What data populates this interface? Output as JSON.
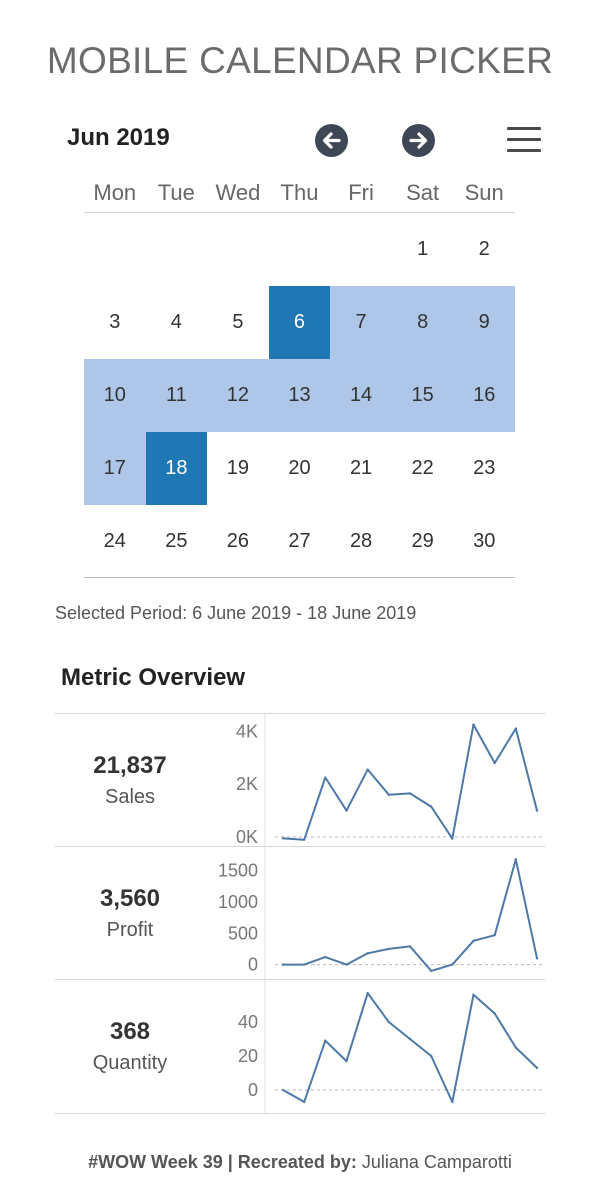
{
  "title": "MOBILE CALENDAR PICKER",
  "calendar": {
    "month_label": "Jun 2019",
    "prev_icon": "arrow-left-circle-icon",
    "next_icon": "arrow-right-circle-icon",
    "menu_icon": "hamburger-menu-icon",
    "weekdays": [
      "Mon",
      "Tue",
      "Wed",
      "Thu",
      "Fri",
      "Sat",
      "Sun"
    ],
    "first_weekday_index": 5,
    "days_in_month": 30,
    "range_start": 6,
    "range_end": 18,
    "range_color": "#aec7e8",
    "endpoint_color": "#1f77b4"
  },
  "selected_period": "Selected Period: 6 June 2019 - 18 June 2019",
  "metrics": {
    "title": "Metric Overview",
    "line_color": "#4e79a7",
    "items": [
      {
        "value": "21,837",
        "label": "Sales",
        "y_ticks": [
          {
            "v": 4000,
            "label": "4K"
          },
          {
            "v": 2000,
            "label": "2K"
          },
          {
            "v": 0,
            "label": "0K"
          }
        ],
        "y_range": [
          -150,
          4350
        ],
        "series": [
          -50,
          -100,
          2250,
          1000,
          2550,
          1600,
          1650,
          1150,
          -60,
          4250,
          2800,
          4100,
          1000
        ]
      },
      {
        "value": "3,560",
        "label": "Profit",
        "y_ticks": [
          {
            "v": 1500,
            "label": "1500"
          },
          {
            "v": 1000,
            "label": "1000"
          },
          {
            "v": 500,
            "label": "500"
          },
          {
            "v": 0,
            "label": "0"
          }
        ],
        "y_range": [
          -150,
          1750
        ],
        "series": [
          0,
          0,
          120,
          0,
          180,
          250,
          290,
          -100,
          0,
          380,
          470,
          1680,
          100
        ]
      },
      {
        "value": "368",
        "label": "Quantity",
        "y_ticks": [
          {
            "v": 40,
            "label": "40"
          },
          {
            "v": 20,
            "label": "20"
          },
          {
            "v": 0,
            "label": "0"
          }
        ],
        "y_range": [
          -10,
          60
        ],
        "series": [
          0,
          -7,
          29,
          17,
          57,
          40,
          30,
          20,
          -7,
          56,
          45,
          25,
          13
        ]
      }
    ]
  },
  "footer": {
    "tag": "#WOW Week 39 | Recreated by:",
    "author": " Juliana Camparotti"
  }
}
